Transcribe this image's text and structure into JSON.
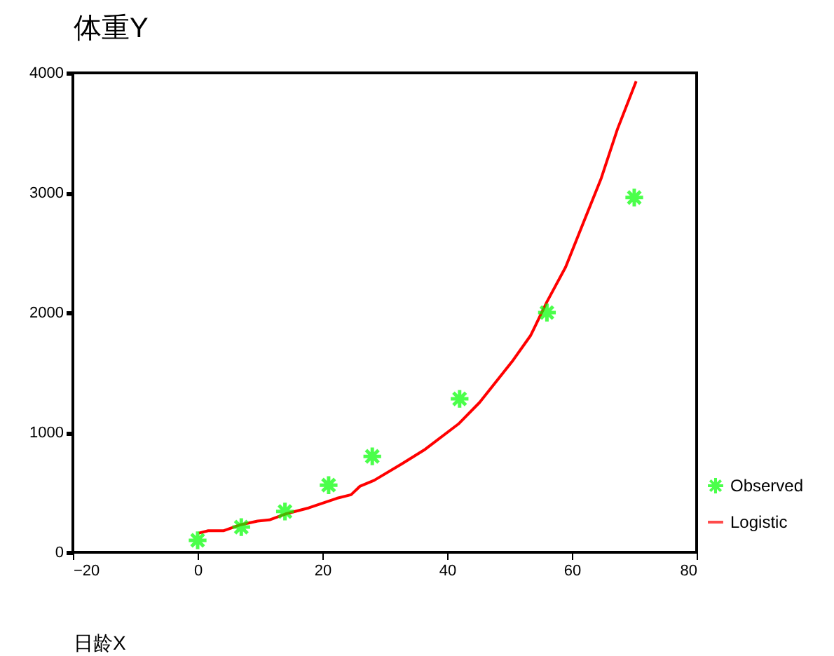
{
  "chart_data": {
    "type": "scatter",
    "xlabel": "日龄X",
    "ylabel": "体重Y",
    "xlim": [
      -20,
      80
    ],
    "xticks": [
      -20,
      0,
      20,
      40,
      60,
      80
    ],
    "ylim": [
      0,
      4000
    ],
    "yticks": [
      0,
      1000,
      2000,
      3000,
      4000
    ],
    "grid": false,
    "legend": "bottom right",
    "series": [
      {
        "name": "Observed",
        "color": "#00ff00",
        "marker": "cross",
        "x": [
          0,
          7,
          14,
          21,
          28,
          42,
          56,
          70
        ],
        "values": [
          100,
          210,
          340,
          560,
          800,
          1280,
          2000,
          2960
        ]
      },
      {
        "name": "Logistic",
        "type": "line",
        "marker": "none",
        "color": "#ff0000",
        "line_style": "solid",
        "x": [
          0.2,
          1.7,
          4.2,
          6.9,
          9.6,
          11.5,
          14.1,
          17.8,
          22.3,
          24.6,
          26,
          28.3,
          32.8,
          36.5,
          41.8,
          45.2,
          50.4,
          53.4,
          56,
          59,
          62,
          64.7,
          67.3,
          70.3
        ],
        "values": [
          160,
          180,
          180,
          230,
          260,
          270,
          320,
          370,
          450,
          480,
          550,
          600,
          740,
          860,
          1070,
          1250,
          1590,
          1810,
          2090,
          2380,
          2770,
          3120,
          3530,
          3930
        ]
      }
    ]
  }
}
